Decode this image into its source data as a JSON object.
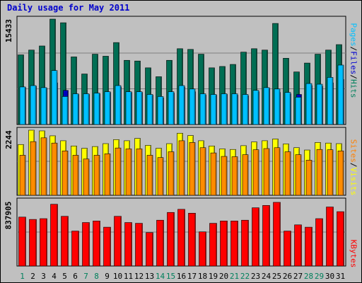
{
  "chart_data": {
    "type": "bar",
    "title": "Daily usage for May 2011",
    "categories": [
      "1",
      "2",
      "3",
      "4",
      "5",
      "6",
      "7",
      "8",
      "9",
      "10",
      "11",
      "12",
      "13",
      "14",
      "15",
      "16",
      "17",
      "18",
      "19",
      "20",
      "21",
      "22",
      "23",
      "24",
      "25",
      "26",
      "27",
      "28",
      "29",
      "30",
      "31"
    ],
    "weekend_categories": [
      "1",
      "7",
      "8",
      "14",
      "15",
      "21",
      "22",
      "28",
      "29"
    ],
    "panels": [
      {
        "id": "traffic",
        "ymax_label": "15433",
        "ylim": [
          0,
          15433
        ],
        "series": [
          {
            "name": "Hits",
            "color": "#006e54",
            "values": [
              10200,
              10900,
              11500,
              15433,
              14900,
              9900,
              7400,
              10300,
              10000,
              12000,
              9400,
              9300,
              8300,
              7000,
              9400,
              11100,
              11000,
              10300,
              8300,
              8500,
              8800,
              10600,
              11100,
              10900,
              14800,
              9700,
              7700,
              9000,
              10300,
              10900,
              11700
            ]
          },
          {
            "name": "Files",
            "color": "#0000c0",
            "values": [
              5400,
              5600,
              5300,
              6100,
              5000,
              4400,
              4400,
              4500,
              4700,
              5500,
              4700,
              4700,
              4300,
              3900,
              4600,
              5500,
              4800,
              4300,
              4300,
              4400,
              4300,
              4200,
              4800,
              5300,
              4700,
              4500,
              4400,
              5700,
              5600,
              6100,
              6600
            ]
          },
          {
            "name": "Pages",
            "color": "#00c0ff",
            "values": [
              5500,
              5700,
              5400,
              7900,
              4100,
              4500,
              4500,
              4600,
              4800,
              5700,
              4800,
              4800,
              4400,
              4100,
              4800,
              5700,
              5200,
              4500,
              4400,
              4500,
              4500,
              4400,
              5000,
              5400,
              5200,
              4700,
              4000,
              6000,
              5900,
              6900,
              8700
            ]
          }
        ]
      },
      {
        "id": "visitors",
        "ymax_label": "2244",
        "ylim": [
          0,
          2244
        ],
        "series": [
          {
            "name": "Visits",
            "color": "#ffff00",
            "values": [
              1750,
              2244,
              2220,
              2050,
              1880,
              1700,
              1620,
              1680,
              1780,
              1920,
              1880,
              1960,
              1720,
              1620,
              1780,
              2140,
              2060,
              1880,
              1700,
              1600,
              1580,
              1710,
              1840,
              1880,
              1940,
              1770,
              1640,
              1560,
              1820,
              1800,
              1780
            ]
          },
          {
            "name": "Sites",
            "color": "#ff8c00",
            "values": [
              1380,
              1850,
              1980,
              1800,
              1530,
              1380,
              1250,
              1380,
              1430,
              1630,
              1600,
              1600,
              1380,
              1300,
              1500,
              1880,
              1820,
              1640,
              1460,
              1340,
              1330,
              1400,
              1570,
              1610,
              1640,
              1500,
              1400,
              1210,
              1580,
              1570,
              1530
            ]
          }
        ]
      },
      {
        "id": "volume",
        "ymax_label": "837905",
        "ylim": [
          0,
          837905
        ],
        "series": [
          {
            "name": "KBytes",
            "color": "#ff0000",
            "values": [
              630000,
              600000,
              610000,
              795000,
              640000,
              450000,
              560000,
              580000,
              500000,
              640000,
              560000,
              550000,
              430000,
              590000,
              690000,
              730000,
              680000,
              440000,
              550000,
              580000,
              580000,
              590000,
              750000,
              780000,
              820000,
              450000,
              530000,
              500000,
              610000,
              760000,
              700000
            ]
          }
        ]
      }
    ],
    "legend": {
      "traffic": [
        "Pages",
        "Files",
        "Hits"
      ],
      "visitors": [
        "Sites",
        "Visits"
      ],
      "volume": [
        "KBytes"
      ],
      "separator": "/"
    }
  }
}
